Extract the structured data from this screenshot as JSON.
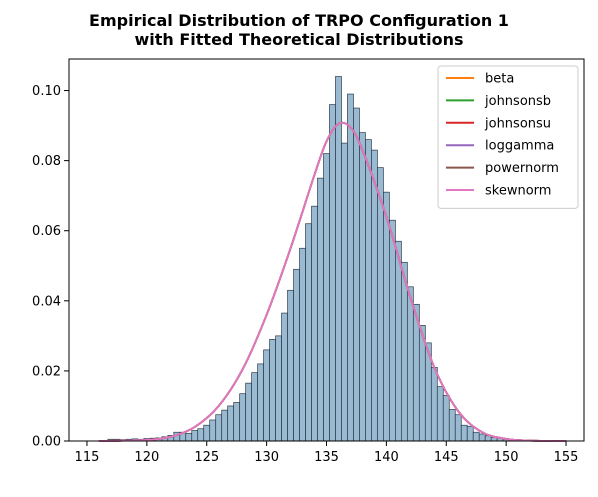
{
  "chart_data": {
    "type": "bar",
    "title_lines": [
      "Empirical Distribution of TRPO Configuration 1",
      "with Fitted Theoretical Distributions"
    ],
    "xlabel": "",
    "ylabel": "",
    "xlim": [
      113.5,
      156.5
    ],
    "ylim": [
      0,
      0.109
    ],
    "xticks": [
      115,
      120,
      125,
      130,
      135,
      140,
      145,
      150,
      155
    ],
    "yticks": [
      0.0,
      0.02,
      0.04,
      0.06,
      0.08,
      0.1
    ],
    "ytick_labels": [
      "0.00",
      "0.02",
      "0.04",
      "0.06",
      "0.08",
      "0.10"
    ],
    "grid": false,
    "legend_position": "top-right",
    "histogram": {
      "bin_width": 0.5,
      "color": "#8fb2cc",
      "edge_color": "#2b3a4a",
      "bins": [
        {
          "x": 117.0,
          "y": 0.0005
        },
        {
          "x": 117.5,
          "y": 0.0005
        },
        {
          "x": 118.0,
          "y": 0.0004
        },
        {
          "x": 118.5,
          "y": 0.0005
        },
        {
          "x": 119.0,
          "y": 0.0006
        },
        {
          "x": 119.5,
          "y": 0.0005
        },
        {
          "x": 120.0,
          "y": 0.0007
        },
        {
          "x": 120.5,
          "y": 0.0008
        },
        {
          "x": 121.0,
          "y": 0.0009
        },
        {
          "x": 121.5,
          "y": 0.0012
        },
        {
          "x": 122.0,
          "y": 0.0016
        },
        {
          "x": 122.5,
          "y": 0.0025
        },
        {
          "x": 123.0,
          "y": 0.0025
        },
        {
          "x": 123.5,
          "y": 0.0022
        },
        {
          "x": 124.0,
          "y": 0.003
        },
        {
          "x": 124.5,
          "y": 0.0035
        },
        {
          "x": 125.0,
          "y": 0.0045
        },
        {
          "x": 125.5,
          "y": 0.006
        },
        {
          "x": 126.0,
          "y": 0.0075
        },
        {
          "x": 126.5,
          "y": 0.0088
        },
        {
          "x": 127.0,
          "y": 0.01
        },
        {
          "x": 127.5,
          "y": 0.011
        },
        {
          "x": 128.0,
          "y": 0.0135
        },
        {
          "x": 128.5,
          "y": 0.0165
        },
        {
          "x": 129.0,
          "y": 0.0195
        },
        {
          "x": 129.5,
          "y": 0.022
        },
        {
          "x": 130.0,
          "y": 0.026
        },
        {
          "x": 130.5,
          "y": 0.029
        },
        {
          "x": 131.0,
          "y": 0.03
        },
        {
          "x": 131.5,
          "y": 0.0365
        },
        {
          "x": 132.0,
          "y": 0.043
        },
        {
          "x": 132.5,
          "y": 0.049
        },
        {
          "x": 133.0,
          "y": 0.055
        },
        {
          "x": 133.5,
          "y": 0.062
        },
        {
          "x": 134.0,
          "y": 0.067
        },
        {
          "x": 134.5,
          "y": 0.075
        },
        {
          "x": 135.0,
          "y": 0.082
        },
        {
          "x": 135.5,
          "y": 0.096
        },
        {
          "x": 136.0,
          "y": 0.104
        },
        {
          "x": 136.5,
          "y": 0.085
        },
        {
          "x": 137.0,
          "y": 0.099
        },
        {
          "x": 137.5,
          "y": 0.095
        },
        {
          "x": 138.0,
          "y": 0.088
        },
        {
          "x": 138.5,
          "y": 0.086
        },
        {
          "x": 139.0,
          "y": 0.083
        },
        {
          "x": 139.5,
          "y": 0.078
        },
        {
          "x": 140.0,
          "y": 0.071
        },
        {
          "x": 140.5,
          "y": 0.063
        },
        {
          "x": 141.0,
          "y": 0.057
        },
        {
          "x": 141.5,
          "y": 0.051
        },
        {
          "x": 142.0,
          "y": 0.044
        },
        {
          "x": 142.5,
          "y": 0.039
        },
        {
          "x": 143.0,
          "y": 0.033
        },
        {
          "x": 143.5,
          "y": 0.028
        },
        {
          "x": 144.0,
          "y": 0.021
        },
        {
          "x": 144.5,
          "y": 0.0155
        },
        {
          "x": 145.0,
          "y": 0.013
        },
        {
          "x": 145.5,
          "y": 0.009
        },
        {
          "x": 146.0,
          "y": 0.0075
        },
        {
          "x": 146.5,
          "y": 0.0045
        },
        {
          "x": 147.0,
          "y": 0.0042
        },
        {
          "x": 147.5,
          "y": 0.0025
        },
        {
          "x": 148.0,
          "y": 0.002
        },
        {
          "x": 148.5,
          "y": 0.0015
        },
        {
          "x": 149.0,
          "y": 0.001
        },
        {
          "x": 149.5,
          "y": 0.0008
        },
        {
          "x": 150.0,
          "y": 0.0005
        },
        {
          "x": 150.5,
          "y": 0.0004
        },
        {
          "x": 151.0,
          "y": 0.0003
        },
        {
          "x": 151.5,
          "y": 0.0002
        },
        {
          "x": 152.0,
          "y": 0.0002
        },
        {
          "x": 152.5,
          "y": 0.0001
        },
        {
          "x": 153.0,
          "y": 0.0001
        },
        {
          "x": 153.5,
          "y": 0.0001
        },
        {
          "x": 154.0,
          "y": 0.0001
        }
      ]
    },
    "series": [
      {
        "name": "beta",
        "color": "#ff7f0e"
      },
      {
        "name": "johnsonsb",
        "color": "#2ca02c"
      },
      {
        "name": "johnsonsu",
        "color": "#d62728"
      },
      {
        "name": "loggamma",
        "color": "#9467bd"
      },
      {
        "name": "powernorm",
        "color": "#8c564b"
      },
      {
        "name": "skewnorm",
        "color": "#e377c2"
      }
    ],
    "fitted_curve": {
      "type": "line",
      "peak_x": 136,
      "peak_y": 0.0905,
      "x_range": [
        116,
        155
      ],
      "points": [
        {
          "x": 116,
          "y": 0.0
        },
        {
          "x": 118,
          "y": 0.0001
        },
        {
          "x": 120,
          "y": 0.0003
        },
        {
          "x": 122,
          "y": 0.0012
        },
        {
          "x": 124,
          "y": 0.004
        },
        {
          "x": 126,
          "y": 0.01
        },
        {
          "x": 128,
          "y": 0.0205
        },
        {
          "x": 130,
          "y": 0.036
        },
        {
          "x": 132,
          "y": 0.055
        },
        {
          "x": 134,
          "y": 0.076
        },
        {
          "x": 135,
          "y": 0.0855
        },
        {
          "x": 136,
          "y": 0.0905
        },
        {
          "x": 137,
          "y": 0.0895
        },
        {
          "x": 138,
          "y": 0.083
        },
        {
          "x": 140,
          "y": 0.064
        },
        {
          "x": 142,
          "y": 0.041
        },
        {
          "x": 144,
          "y": 0.021
        },
        {
          "x": 146,
          "y": 0.0085
        },
        {
          "x": 148,
          "y": 0.0025
        },
        {
          "x": 150,
          "y": 0.0006
        },
        {
          "x": 152,
          "y": 0.0001
        },
        {
          "x": 155,
          "y": 0.0
        }
      ]
    }
  },
  "colors": {
    "axes_edge": "#000000",
    "legend_edge": "#cccccc"
  }
}
